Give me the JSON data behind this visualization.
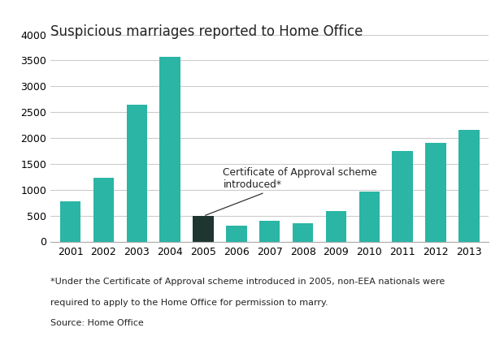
{
  "title": "Suspicious marriages reported to Home Office",
  "categories": [
    "2001",
    "2002",
    "2003",
    "2004",
    "2005",
    "2006",
    "2007",
    "2008",
    "2009",
    "2010",
    "2011",
    "2012",
    "2013"
  ],
  "values": [
    775,
    1225,
    2650,
    3575,
    490,
    300,
    405,
    355,
    585,
    960,
    1750,
    1900,
    2150
  ],
  "bar_colors": [
    "#2ab5a5",
    "#2ab5a5",
    "#2ab5a5",
    "#2ab5a5",
    "#1e3530",
    "#2ab5a5",
    "#2ab5a5",
    "#2ab5a5",
    "#2ab5a5",
    "#2ab5a5",
    "#2ab5a5",
    "#2ab5a5",
    "#2ab5a5"
  ],
  "ylim": [
    0,
    4000
  ],
  "yticks": [
    0,
    500,
    1000,
    1500,
    2000,
    2500,
    3000,
    3500,
    4000
  ],
  "annotation_text": "Certificate of Approval scheme\nintroduced*",
  "footnote_line1": "*Under the Certificate of Approval scheme introduced in 2005, non-EEA nationals were",
  "footnote_line2": "required to apply to the Home Office for permission to marry.",
  "footnote_line3": "Source: Home Office",
  "background_color": "#ffffff",
  "grid_color": "#cccccc",
  "title_fontsize": 12,
  "tick_fontsize": 9,
  "footnote_fontsize": 8,
  "bar_width": 0.62
}
